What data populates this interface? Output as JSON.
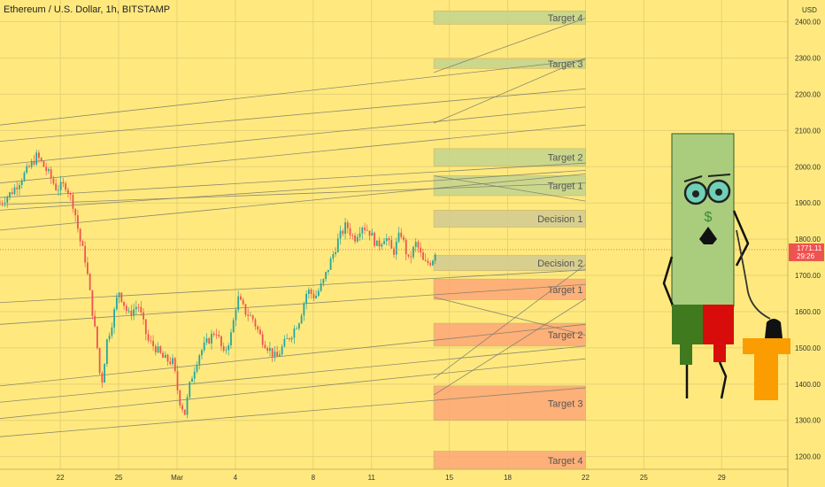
{
  "chart_data": {
    "type": "candlestick",
    "title": "Ethereum / U.S. Dollar, 1h, BITSTAMP",
    "currency": "USD",
    "y_ticks": [
      1200,
      1300,
      1400,
      1500,
      1600,
      1700,
      1800,
      1900,
      2000,
      2100,
      2200,
      2300,
      2400
    ],
    "y_tick_labels": [
      "1200.00",
      "1300.00",
      "1400.00",
      "1500.00",
      "1600.00",
      "1700.00",
      "1800.00",
      "1900.00",
      "2000.00",
      "2100.00",
      "2200.00",
      "2300.00",
      "2400.00"
    ],
    "ylim": [
      1165,
      2460
    ],
    "x_ticks": [
      {
        "day": 22,
        "label": "22"
      },
      {
        "day": 25,
        "label": "25"
      },
      {
        "day": 28,
        "label": "Mar"
      },
      {
        "day": 31,
        "label": "4"
      },
      {
        "day": 35,
        "label": "8"
      },
      {
        "day": 38,
        "label": "11"
      },
      {
        "day": 42,
        "label": "15"
      },
      {
        "day": 45,
        "label": "18"
      },
      {
        "day": 49,
        "label": "22"
      },
      {
        "day": 52,
        "label": "25"
      },
      {
        "day": 56,
        "label": "29"
      }
    ],
    "xlim": [
      18.9,
      59.4
    ],
    "price_path": [
      [
        18.9,
        1900
      ],
      [
        19.5,
        1930
      ],
      [
        20.3,
        1990
      ],
      [
        20.8,
        2030
      ],
      [
        21.4,
        1980
      ],
      [
        21.8,
        1940
      ],
      [
        22.3,
        1950
      ],
      [
        22.7,
        1890
      ],
      [
        23.0,
        1800
      ],
      [
        23.3,
        1740
      ],
      [
        23.6,
        1620
      ],
      [
        23.9,
        1500
      ],
      [
        24.1,
        1390
      ],
      [
        24.4,
        1520
      ],
      [
        24.7,
        1580
      ],
      [
        25.0,
        1660
      ],
      [
        25.5,
        1590
      ],
      [
        26.0,
        1620
      ],
      [
        26.5,
        1520
      ],
      [
        26.9,
        1500
      ],
      [
        27.3,
        1470
      ],
      [
        27.8,
        1460
      ],
      [
        28.1,
        1360
      ],
      [
        28.4,
        1320
      ],
      [
        28.7,
        1410
      ],
      [
        29.1,
        1480
      ],
      [
        29.6,
        1520
      ],
      [
        30.0,
        1550
      ],
      [
        30.4,
        1480
      ],
      [
        30.8,
        1540
      ],
      [
        31.1,
        1640
      ],
      [
        31.5,
        1600
      ],
      [
        31.9,
        1580
      ],
      [
        32.3,
        1530
      ],
      [
        32.7,
        1500
      ],
      [
        33.1,
        1470
      ],
      [
        33.5,
        1510
      ],
      [
        33.9,
        1540
      ],
      [
        34.3,
        1580
      ],
      [
        34.7,
        1660
      ],
      [
        35.1,
        1640
      ],
      [
        35.5,
        1680
      ],
      [
        35.9,
        1740
      ],
      [
        36.3,
        1800
      ],
      [
        36.7,
        1840
      ],
      [
        37.1,
        1800
      ],
      [
        37.5,
        1840
      ],
      [
        37.9,
        1820
      ],
      [
        38.3,
        1780
      ],
      [
        38.7,
        1810
      ],
      [
        39.1,
        1760
      ],
      [
        39.5,
        1820
      ],
      [
        39.9,
        1740
      ],
      [
        40.3,
        1790
      ],
      [
        40.7,
        1730
      ],
      [
        41.1,
        1740
      ],
      [
        41.3,
        1771
      ]
    ],
    "current_price": {
      "value": "1771.11",
      "countdown": "29:26"
    },
    "zones": [
      {
        "label": "Target 4",
        "low": 2393,
        "high": 2430,
        "color": "#c6d68d"
      },
      {
        "label": "Target 3",
        "low": 2271,
        "high": 2297,
        "color": "#c6d68d"
      },
      {
        "label": "Target 2",
        "low": 2002,
        "high": 2050,
        "color": "#c6d68d"
      },
      {
        "label": "Target 1",
        "low": 1920,
        "high": 1975,
        "color": "#c6d68d"
      },
      {
        "label": "Decision 1",
        "low": 1833,
        "high": 1880,
        "color": "#d4cd90"
      },
      {
        "label": "Decision 2",
        "low": 1713,
        "high": 1755,
        "color": "#d4cd90"
      },
      {
        "label": "Target 1",
        "low": 1633,
        "high": 1690,
        "color": "#fdaa78"
      },
      {
        "label": "Target 2",
        "low": 1505,
        "high": 1568,
        "color": "#fdaa78"
      },
      {
        "label": "Target 3",
        "low": 1300,
        "high": 1395,
        "color": "#fdaa78"
      },
      {
        "label": "Target 4",
        "low": 1165,
        "high": 1215,
        "color": "#fdaa78"
      }
    ],
    "zone_x_range": [
      41.2,
      49.0
    ],
    "trendlines": [
      {
        "x1": 18.9,
        "y1": 2115,
        "x2": 49.0,
        "y2": 2295
      },
      {
        "x1": 18.9,
        "y1": 2070,
        "x2": 49.0,
        "y2": 2215
      },
      {
        "x1": 18.9,
        "y1": 2005,
        "x2": 49.0,
        "y2": 2165
      },
      {
        "x1": 18.9,
        "y1": 1955,
        "x2": 49.0,
        "y2": 2115
      },
      {
        "x1": 18.9,
        "y1": 1915,
        "x2": 49.0,
        "y2": 2010
      },
      {
        "x1": 18.9,
        "y1": 1895,
        "x2": 49.0,
        "y2": 1955
      },
      {
        "x1": 18.9,
        "y1": 1880,
        "x2": 49.0,
        "y2": 1990
      },
      {
        "x1": 18.9,
        "y1": 1825,
        "x2": 49.0,
        "y2": 1980
      },
      {
        "x1": 18.9,
        "y1": 1625,
        "x2": 49.0,
        "y2": 1715
      },
      {
        "x1": 18.9,
        "y1": 1565,
        "x2": 49.0,
        "y2": 1675
      },
      {
        "x1": 18.9,
        "y1": 1395,
        "x2": 49.0,
        "y2": 1565
      },
      {
        "x1": 18.9,
        "y1": 1350,
        "x2": 49.0,
        "y2": 1505
      },
      {
        "x1": 18.9,
        "y1": 1305,
        "x2": 49.0,
        "y2": 1470
      },
      {
        "x1": 18.9,
        "y1": 1255,
        "x2": 49.0,
        "y2": 1390
      },
      {
        "x1": 41.2,
        "y1": 2260,
        "x2": 49.0,
        "y2": 2410
      },
      {
        "x1": 41.2,
        "y1": 2120,
        "x2": 49.0,
        "y2": 2300
      },
      {
        "x1": 41.2,
        "y1": 1975,
        "x2": 49.0,
        "y2": 1905
      },
      {
        "x1": 41.2,
        "y1": 1640,
        "x2": 49.0,
        "y2": 1535
      },
      {
        "x1": 41.2,
        "y1": 1415,
        "x2": 49.0,
        "y2": 1730
      },
      {
        "x1": 41.2,
        "y1": 1370,
        "x2": 49.0,
        "y2": 1635
      }
    ],
    "colors": {
      "background": "#ffe97f",
      "bull": "#26a69a",
      "bear": "#ef5350",
      "price_badge": "#ef5350",
      "grid": "#e6d174",
      "trendline": "#7a7a6a"
    },
    "grid": true
  },
  "mascot": {
    "description_icon": "green-bill-character-icon",
    "dollar_sign": "$",
    "colors": {
      "body": "#a9cd7d",
      "left_leg": "#3f7a1f",
      "right_leg": "#d90c0c",
      "block": "#fb9c00"
    }
  }
}
